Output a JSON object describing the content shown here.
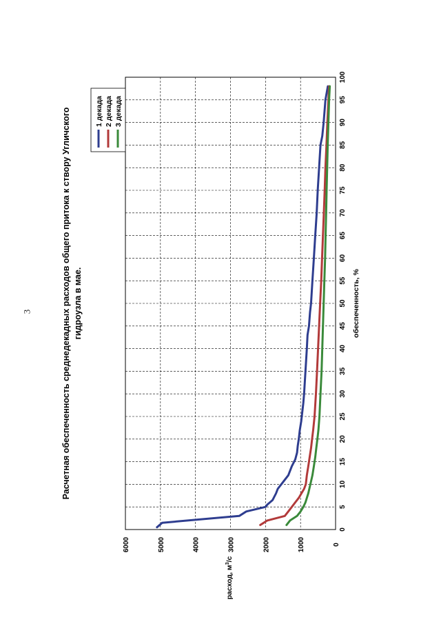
{
  "page_number": "3",
  "chart_data": {
    "type": "line",
    "title_line1": "Расчетная обеспеченность среднедекадных расходов общего притока к створу Угличского",
    "title_line2": "гидроузла в мае.",
    "xlabel": "обеспеченность, %",
    "ylabel": "расход, м³/с",
    "xlim": [
      0,
      100
    ],
    "ylim": [
      0,
      6000
    ],
    "x_ticks": [
      0,
      5,
      10,
      15,
      20,
      25,
      30,
      35,
      40,
      45,
      50,
      55,
      60,
      65,
      70,
      75,
      80,
      85,
      90,
      95,
      100
    ],
    "y_ticks": [
      0,
      1000,
      2000,
      3000,
      4000,
      5000,
      6000
    ],
    "grid": true,
    "legend_position": "top-right",
    "series": [
      {
        "name": "1 декада",
        "color": "#2e3d8f",
        "x": [
          0.5,
          1.5,
          3,
          4,
          5,
          5.5,
          6.5,
          8,
          9,
          10,
          12,
          14,
          15.5,
          17,
          18.5,
          20,
          22,
          24,
          26,
          28,
          30,
          35,
          40,
          43,
          45,
          48,
          50,
          55,
          60,
          65,
          70,
          75,
          80,
          85,
          87,
          90,
          95,
          98
        ],
        "y": [
          5100,
          4950,
          2750,
          2550,
          2000,
          1950,
          1800,
          1700,
          1650,
          1550,
          1350,
          1250,
          1150,
          1100,
          1080,
          1050,
          1020,
          980,
          950,
          920,
          900,
          860,
          820,
          800,
          760,
          730,
          700,
          660,
          620,
          580,
          540,
          510,
          470,
          430,
          380,
          340,
          290,
          220
        ]
      },
      {
        "name": "2 декада",
        "color": "#b23a3a",
        "x": [
          1,
          2,
          3,
          4,
          5,
          6,
          7,
          9,
          10,
          12,
          14,
          16,
          18,
          20,
          22,
          25,
          30,
          35,
          40,
          45,
          50,
          55,
          60,
          65,
          70,
          75,
          80,
          85,
          90,
          95,
          98
        ],
        "y": [
          2150,
          1950,
          1450,
          1350,
          1250,
          1150,
          1050,
          900,
          850,
          820,
          780,
          740,
          700,
          670,
          640,
          600,
          560,
          530,
          500,
          470,
          440,
          410,
          385,
          360,
          335,
          310,
          290,
          260,
          235,
          205,
          185
        ]
      },
      {
        "name": "3 декада",
        "color": "#3a8a3a",
        "x": [
          1,
          2,
          3,
          4,
          5,
          6,
          8,
          10,
          12,
          14,
          16,
          18,
          20,
          22,
          25,
          30,
          35,
          40,
          45,
          50,
          55,
          60,
          65,
          70,
          75,
          80,
          85,
          90,
          95,
          98
        ],
        "y": [
          1400,
          1300,
          1100,
          1000,
          920,
          860,
          780,
          720,
          660,
          620,
          580,
          550,
          520,
          490,
          460,
          430,
          400,
          380,
          360,
          340,
          320,
          300,
          285,
          270,
          255,
          240,
          225,
          205,
          185,
          165
        ]
      }
    ]
  }
}
